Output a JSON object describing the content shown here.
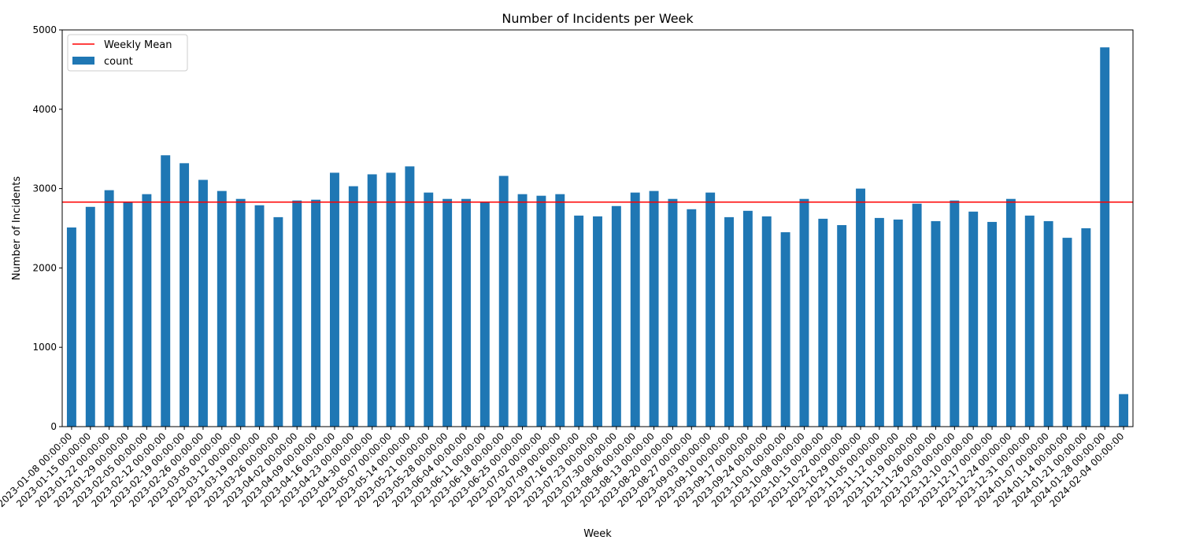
{
  "chart_data": {
    "type": "bar",
    "title": "Number of Incidents per Week",
    "xlabel": "Week",
    "ylabel": "Number of Incidents",
    "ylim": [
      0,
      5000
    ],
    "yticks": [
      0,
      1000,
      2000,
      3000,
      4000,
      5000
    ],
    "grid": false,
    "legend_position": "top-left",
    "categories": [
      "2023-01-08 00:00:00",
      "2023-01-15 00:00:00",
      "2023-01-22 00:00:00",
      "2023-01-29 00:00:00",
      "2023-02-05 00:00:00",
      "2023-02-12 00:00:00",
      "2023-02-19 00:00:00",
      "2023-02-26 00:00:00",
      "2023-03-05 00:00:00",
      "2023-03-12 00:00:00",
      "2023-03-19 00:00:00",
      "2023-03-26 00:00:00",
      "2023-04-02 00:00:00",
      "2023-04-09 00:00:00",
      "2023-04-16 00:00:00",
      "2023-04-23 00:00:00",
      "2023-04-30 00:00:00",
      "2023-05-07 00:00:00",
      "2023-05-14 00:00:00",
      "2023-05-21 00:00:00",
      "2023-05-28 00:00:00",
      "2023-06-04 00:00:00",
      "2023-06-11 00:00:00",
      "2023-06-18 00:00:00",
      "2023-06-25 00:00:00",
      "2023-07-02 00:00:00",
      "2023-07-09 00:00:00",
      "2023-07-16 00:00:00",
      "2023-07-23 00:00:00",
      "2023-07-30 00:00:00",
      "2023-08-06 00:00:00",
      "2023-08-13 00:00:00",
      "2023-08-20 00:00:00",
      "2023-08-27 00:00:00",
      "2023-09-03 00:00:00",
      "2023-09-10 00:00:00",
      "2023-09-17 00:00:00",
      "2023-09-24 00:00:00",
      "2023-10-01 00:00:00",
      "2023-10-08 00:00:00",
      "2023-10-15 00:00:00",
      "2023-10-22 00:00:00",
      "2023-10-29 00:00:00",
      "2023-11-05 00:00:00",
      "2023-11-12 00:00:00",
      "2023-11-19 00:00:00",
      "2023-11-26 00:00:00",
      "2023-12-03 00:00:00",
      "2023-12-10 00:00:00",
      "2023-12-17 00:00:00",
      "2023-12-24 00:00:00",
      "2023-12-31 00:00:00",
      "2024-01-07 00:00:00",
      "2024-01-14 00:00:00",
      "2024-01-21 00:00:00",
      "2024-01-28 00:00:00",
      "2024-02-04 00:00:00"
    ],
    "series": [
      {
        "name": "count",
        "color": "#1f77b4",
        "values": [
          2510,
          2770,
          2980,
          2830,
          2930,
          3420,
          3320,
          3110,
          2970,
          2870,
          2790,
          2640,
          2850,
          2860,
          3200,
          3030,
          3180,
          3200,
          3280,
          2950,
          2870,
          2870,
          2830,
          3160,
          2930,
          2910,
          2930,
          2660,
          2650,
          2780,
          2950,
          2970,
          2870,
          2740,
          2950,
          2640,
          2720,
          2650,
          2450,
          2870,
          2620,
          2540,
          3000,
          2630,
          2610,
          2810,
          2590,
          2850,
          2710,
          2580,
          2870,
          2660,
          2590,
          2380,
          2500,
          4780,
          410
        ]
      }
    ],
    "reference_lines": [
      {
        "name": " Weekly Mean",
        "value": 2830,
        "color": "#ff0000"
      }
    ]
  }
}
